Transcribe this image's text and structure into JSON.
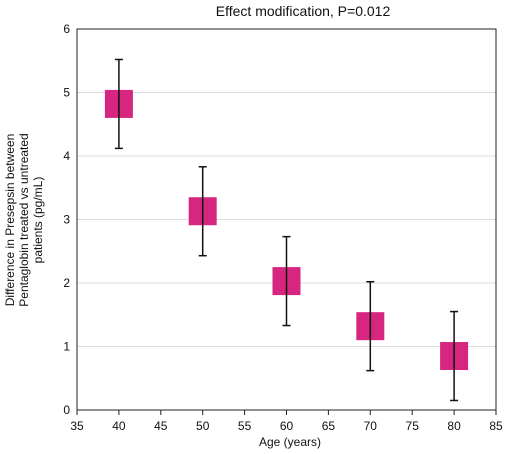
{
  "chart_data": {
    "type": "scatter",
    "title": "Effect modification, P=0.012",
    "xlabel": "Age (years)",
    "ylabel_lines": [
      "Difference in Presepsin between",
      "Pentaglobin treated vs untreated",
      "patients (pg/mL)"
    ],
    "xlim": [
      35,
      85
    ],
    "ylim": [
      0,
      6
    ],
    "x_ticks": [
      35,
      40,
      45,
      50,
      55,
      60,
      65,
      70,
      75,
      80,
      85
    ],
    "y_ticks": [
      0,
      1,
      2,
      3,
      4,
      5,
      6
    ],
    "grid": "horizontal",
    "marker": "square",
    "marker_color": "#d6267f",
    "errorbar_color": "#111111",
    "points": [
      {
        "x": 40,
        "y": 4.82,
        "lower": 4.12,
        "upper": 5.52
      },
      {
        "x": 50,
        "y": 3.13,
        "lower": 2.43,
        "upper": 3.83
      },
      {
        "x": 60,
        "y": 2.03,
        "lower": 1.33,
        "upper": 2.73
      },
      {
        "x": 70,
        "y": 1.32,
        "lower": 0.62,
        "upper": 2.02
      },
      {
        "x": 80,
        "y": 0.85,
        "lower": 0.15,
        "upper": 1.55
      }
    ]
  }
}
